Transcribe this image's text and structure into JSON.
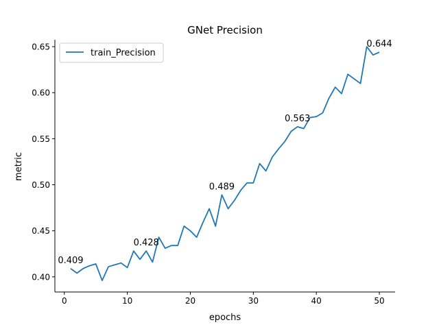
{
  "chart_data": {
    "type": "line",
    "title": "GNet Precision",
    "xlabel": "epochs",
    "ylabel": "metric",
    "xlim": [
      -1.5,
      52.5
    ],
    "ylim": [
      0.3835,
      0.6575
    ],
    "xticks": [
      0,
      10,
      20,
      30,
      40,
      50
    ],
    "yticks": [
      0.4,
      0.45,
      0.5,
      0.55,
      0.6,
      0.65
    ],
    "ytick_labels": [
      "0.40",
      "0.45",
      "0.50",
      "0.55",
      "0.60",
      "0.65"
    ],
    "grid": false,
    "legend": "upper-left",
    "series": [
      {
        "name": "train_Precision",
        "color": "#1f77b4",
        "x": [
          1,
          2,
          3,
          4,
          5,
          6,
          7,
          8,
          9,
          10,
          11,
          12,
          13,
          14,
          15,
          16,
          17,
          18,
          19,
          20,
          21,
          22,
          23,
          24,
          25,
          26,
          27,
          28,
          29,
          30,
          31,
          32,
          33,
          34,
          35,
          36,
          37,
          38,
          39,
          40,
          41,
          42,
          43,
          44,
          45,
          46,
          47,
          48,
          49,
          50
        ],
        "y": [
          0.409,
          0.404,
          0.409,
          0.412,
          0.414,
          0.396,
          0.411,
          0.413,
          0.415,
          0.41,
          0.428,
          0.419,
          0.428,
          0.416,
          0.443,
          0.431,
          0.434,
          0.434,
          0.455,
          0.45,
          0.443,
          0.459,
          0.474,
          0.455,
          0.489,
          0.474,
          0.483,
          0.494,
          0.502,
          0.502,
          0.523,
          0.515,
          0.53,
          0.539,
          0.547,
          0.558,
          0.563,
          0.561,
          0.573,
          0.574,
          0.578,
          0.594,
          0.606,
          0.599,
          0.62,
          0.615,
          0.61,
          0.65,
          0.641,
          0.644
        ]
      }
    ],
    "annotations": [
      {
        "x": 1,
        "y": 0.409,
        "text": "0.409"
      },
      {
        "x": 13,
        "y": 0.428,
        "text": "0.428"
      },
      {
        "x": 25,
        "y": 0.489,
        "text": "0.489"
      },
      {
        "x": 37,
        "y": 0.563,
        "text": "0.563"
      },
      {
        "x": 50,
        "y": 0.644,
        "text": "0.644"
      }
    ]
  }
}
